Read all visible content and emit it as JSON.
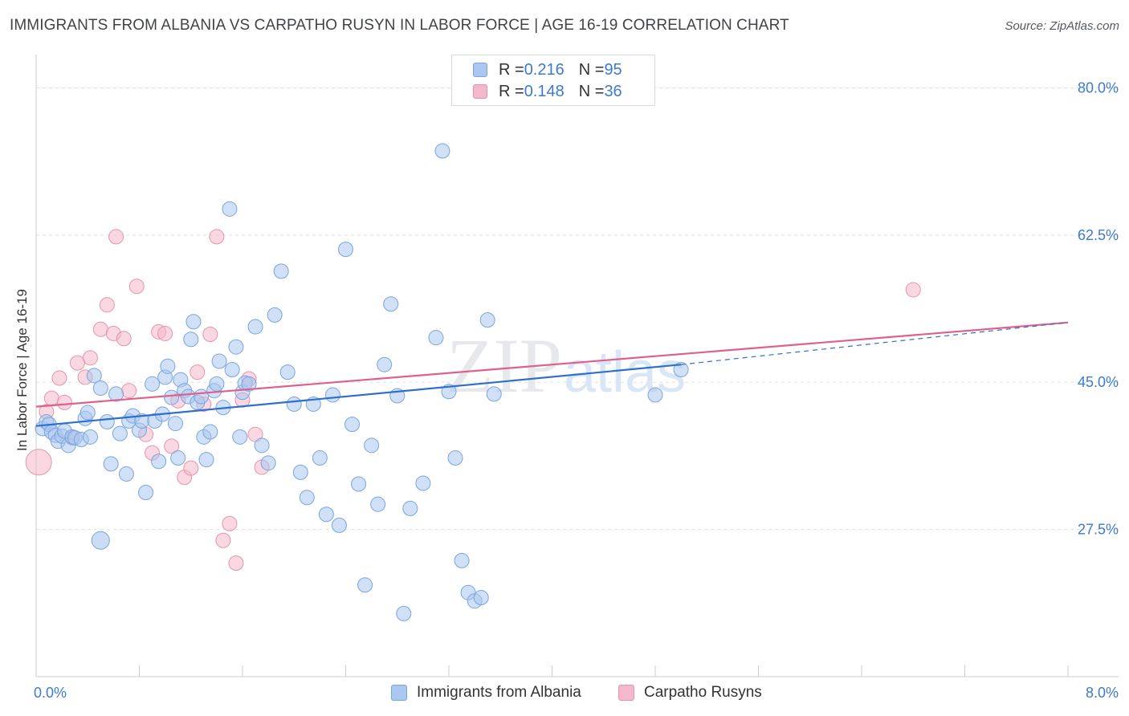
{
  "header": {
    "title": "IMMIGRANTS FROM ALBANIA VS CARPATHO RUSYN IN LABOR FORCE | AGE 16-19 CORRELATION CHART",
    "source": "Source: ZipAtlas.com"
  },
  "watermark": {
    "part1": "ZIP",
    "part2": "atlas"
  },
  "colors": {
    "blue_fill": "#a9c7ef",
    "blue_stroke": "#7aa5de",
    "blue_line": "#2f6fcc",
    "pink_fill": "#f4b8cb",
    "pink_stroke": "#e893ad",
    "pink_line": "#e0608c",
    "grid": "#dde0e5",
    "axis_label": "#3d7ad1"
  },
  "legend_top": {
    "rows": [
      {
        "r_label": "R = ",
        "r_value": "0.216",
        "n_label": "N = ",
        "n_value": "95"
      },
      {
        "r_label": "R = ",
        "r_value": "0.148",
        "n_label": "N = ",
        "n_value": "36"
      }
    ]
  },
  "legend_bottom": {
    "items": [
      "Immigrants from Albania",
      "Carpatho Rusyns"
    ]
  },
  "chart_data": {
    "type": "scatter",
    "ylabel": "In Labor Force | Age 16-19",
    "xlim": [
      0,
      8
    ],
    "ylim": [
      10,
      83
    ],
    "x_tick_labels": [
      {
        "value": 0,
        "label": "0.0%"
      },
      {
        "value": 8,
        "label": "8.0%"
      }
    ],
    "y_tick_labels": [
      {
        "value": 27.5,
        "label": "27.5%"
      },
      {
        "value": 45.0,
        "label": "45.0%"
      },
      {
        "value": 62.5,
        "label": "62.5%"
      },
      {
        "value": 80.0,
        "label": "80.0%"
      }
    ],
    "x_minor_ticks": [
      0.8,
      1.6,
      2.4,
      3.2,
      4.0,
      4.8,
      5.6,
      6.4,
      7.2,
      8.0
    ],
    "grid": true,
    "series": [
      {
        "name": "Immigrants from Albania",
        "color": "#a9c7ef",
        "trend": {
          "x": [
            0,
            5.0
          ],
          "y": [
            39.8,
            47.1
          ],
          "dashed_to_x": 8.0,
          "dashed_to_y": 52.1
        },
        "points": [
          [
            0.05,
            39.5
          ],
          [
            0.08,
            40.3
          ],
          [
            0.1,
            40.0
          ],
          [
            0.12,
            39.1
          ],
          [
            0.15,
            38.7
          ],
          [
            0.17,
            38.0
          ],
          [
            0.2,
            38.6
          ],
          [
            0.22,
            39.2
          ],
          [
            0.25,
            37.5
          ],
          [
            0.28,
            38.5
          ],
          [
            0.3,
            38.4
          ],
          [
            0.35,
            38.2
          ],
          [
            0.38,
            40.7
          ],
          [
            0.4,
            41.4
          ],
          [
            0.42,
            38.5
          ],
          [
            0.45,
            45.8
          ],
          [
            0.5,
            44.3
          ],
          [
            0.55,
            40.3
          ],
          [
            0.58,
            35.3
          ],
          [
            0.62,
            43.6
          ],
          [
            0.65,
            38.9
          ],
          [
            0.7,
            34.1
          ],
          [
            0.72,
            40.4
          ],
          [
            0.75,
            41.0
          ],
          [
            0.8,
            39.3
          ],
          [
            0.82,
            40.4
          ],
          [
            0.85,
            31.9
          ],
          [
            0.9,
            44.8
          ],
          [
            0.92,
            40.4
          ],
          [
            0.95,
            35.6
          ],
          [
            0.98,
            41.2
          ],
          [
            1.0,
            45.6
          ],
          [
            1.02,
            46.9
          ],
          [
            1.05,
            43.2
          ],
          [
            1.08,
            40.1
          ],
          [
            1.1,
            36.0
          ],
          [
            1.12,
            45.3
          ],
          [
            1.15,
            44.0
          ],
          [
            1.18,
            43.3
          ],
          [
            1.2,
            50.1
          ],
          [
            1.22,
            52.2
          ],
          [
            1.25,
            42.6
          ],
          [
            1.28,
            43.3
          ],
          [
            1.3,
            38.5
          ],
          [
            1.32,
            35.8
          ],
          [
            1.35,
            39.1
          ],
          [
            1.38,
            44.0
          ],
          [
            1.4,
            44.8
          ],
          [
            1.42,
            47.5
          ],
          [
            1.45,
            42.0
          ],
          [
            1.5,
            65.6
          ],
          [
            1.52,
            46.5
          ],
          [
            1.55,
            49.2
          ],
          [
            1.58,
            38.5
          ],
          [
            1.6,
            43.8
          ],
          [
            1.62,
            44.9
          ],
          [
            1.65,
            44.8
          ],
          [
            1.7,
            51.6
          ],
          [
            1.75,
            37.5
          ],
          [
            1.8,
            35.4
          ],
          [
            1.85,
            53.0
          ],
          [
            1.9,
            58.2
          ],
          [
            1.95,
            46.2
          ],
          [
            2.0,
            42.4
          ],
          [
            2.05,
            34.3
          ],
          [
            2.1,
            31.3
          ],
          [
            2.15,
            42.4
          ],
          [
            2.2,
            36.0
          ],
          [
            2.25,
            29.3
          ],
          [
            2.3,
            43.5
          ],
          [
            2.35,
            28.0
          ],
          [
            2.4,
            60.8
          ],
          [
            2.45,
            40.0
          ],
          [
            2.5,
            32.9
          ],
          [
            2.55,
            20.9
          ],
          [
            2.6,
            37.5
          ],
          [
            2.65,
            30.5
          ],
          [
            2.7,
            47.1
          ],
          [
            2.75,
            54.3
          ],
          [
            2.8,
            43.4
          ],
          [
            2.85,
            17.5
          ],
          [
            2.9,
            30.0
          ],
          [
            3.0,
            33.0
          ],
          [
            3.1,
            50.3
          ],
          [
            3.15,
            72.5
          ],
          [
            3.2,
            43.9
          ],
          [
            3.25,
            36.0
          ],
          [
            3.3,
            23.8
          ],
          [
            3.35,
            20.0
          ],
          [
            3.4,
            19.0
          ],
          [
            3.45,
            19.4
          ],
          [
            3.5,
            52.4
          ],
          [
            3.55,
            43.6
          ],
          [
            4.8,
            43.5
          ],
          [
            5.0,
            46.5
          ]
        ]
      },
      {
        "name": "Carpatho Rusyns",
        "color": "#f4b8cb",
        "trend": {
          "x": [
            0,
            8.0
          ],
          "y": [
            42.1,
            52.1
          ]
        },
        "points": [
          [
            0.02,
            35.5
          ],
          [
            0.08,
            41.5
          ],
          [
            0.12,
            43.1
          ],
          [
            0.18,
            45.5
          ],
          [
            0.22,
            42.6
          ],
          [
            0.28,
            38.4
          ],
          [
            0.32,
            47.3
          ],
          [
            0.38,
            45.6
          ],
          [
            0.42,
            47.9
          ],
          [
            0.5,
            51.3
          ],
          [
            0.55,
            54.2
          ],
          [
            0.6,
            50.8
          ],
          [
            0.62,
            62.3
          ],
          [
            0.68,
            50.2
          ],
          [
            0.72,
            44.0
          ],
          [
            0.78,
            56.4
          ],
          [
            0.85,
            38.8
          ],
          [
            0.9,
            36.6
          ],
          [
            0.95,
            51.0
          ],
          [
            1.0,
            50.8
          ],
          [
            1.05,
            37.4
          ],
          [
            1.1,
            42.8
          ],
          [
            1.15,
            33.7
          ],
          [
            1.2,
            34.8
          ],
          [
            1.25,
            46.2
          ],
          [
            1.3,
            42.4
          ],
          [
            1.35,
            50.7
          ],
          [
            1.4,
            62.3
          ],
          [
            1.45,
            26.2
          ],
          [
            1.5,
            28.2
          ],
          [
            1.55,
            23.5
          ],
          [
            1.6,
            42.9
          ],
          [
            1.65,
            45.4
          ],
          [
            1.7,
            38.8
          ],
          [
            1.75,
            34.9
          ],
          [
            6.8,
            56.0
          ]
        ]
      }
    ]
  }
}
